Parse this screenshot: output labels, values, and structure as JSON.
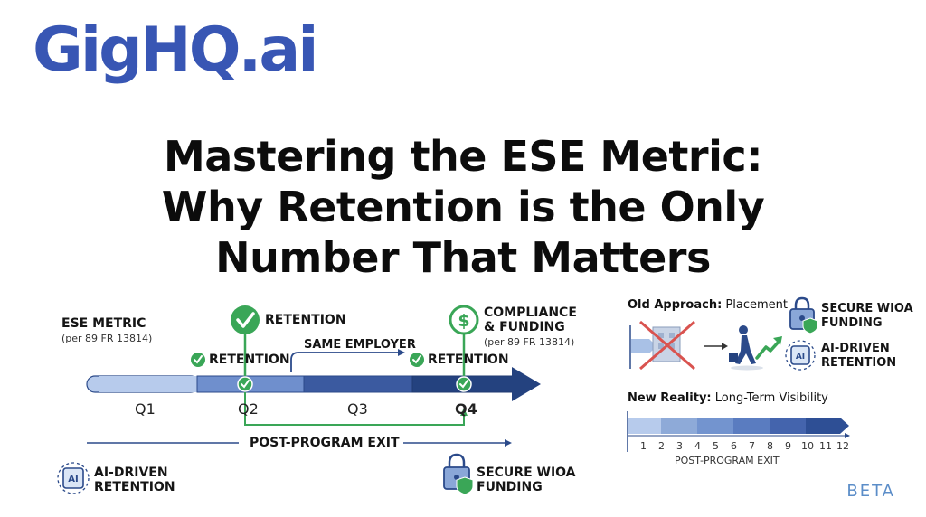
{
  "logo": {
    "text": "GigHQ.ai"
  },
  "title": {
    "line1": "Mastering the ESE Metric:",
    "line2": "Why Retention is the Only",
    "line3": "Number That Matters"
  },
  "left_diagram": {
    "ese_metric": "ESE METRIC",
    "ese_ref": "(per 89 FR 13814)",
    "retention_top": "RETENTION",
    "retention_q2": "RETENTION",
    "same_employer": "SAME EMPLOYER",
    "retention_q4": "RETENTION",
    "compliance": "COMPLIANCE",
    "funding": "& FUNDING",
    "compliance_ref": "(per 89 FR 13814)",
    "quarters": [
      "Q1",
      "Q2",
      "Q3",
      "Q4"
    ],
    "post_exit": "POST-PROGRAM EXIT",
    "ai_driven_line1": "AI-DRIVEN",
    "ai_driven_line2": "RETENTION",
    "secure_line1": "SECURE WIOA",
    "secure_line2": "FUNDING"
  },
  "right_panel": {
    "old_bold": "Old Approach:",
    "old_rest": " Placement",
    "secure_line1": "SECURE WIOA",
    "secure_line2": "FUNDING",
    "ai_line1": "AI-DRIVEN",
    "ai_line2": "RETENTION",
    "new_bold": "New Reality:",
    "new_rest": " Long-Term Visibility",
    "ticks": [
      "1",
      "2",
      "3",
      "4",
      "5",
      "6",
      "7",
      "8",
      "9",
      "10",
      "11",
      "12"
    ],
    "post_exit": "POST-PROGRAM EXIT"
  },
  "beta": "BETA",
  "colors": {
    "brand": "#3856b4",
    "green": "#3aa657",
    "bar_light": "#b7cbec",
    "bar_mid": "#6f8fcd",
    "bar_dark": "#3b5aa0",
    "bar_darkest": "#24427f"
  }
}
